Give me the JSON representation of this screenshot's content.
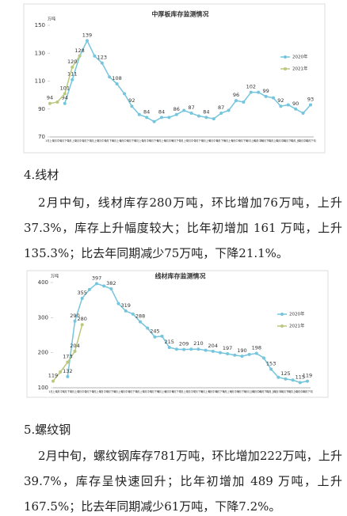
{
  "chart_data": [
    {
      "type": "line",
      "title": "中厚板库存监测情况",
      "y_unit": "万吨",
      "categories": [
        "1月上旬",
        "1月中旬",
        "1月下旬",
        "2月上旬",
        "2月中旬",
        "2月下旬",
        "3月上旬",
        "3月中旬",
        "3月下旬",
        "4月上旬",
        "4月中旬",
        "4月下旬",
        "5月上旬",
        "5月中旬",
        "5月下旬",
        "6月上旬",
        "6月中旬",
        "6月下旬",
        "7月上旬",
        "7月中旬",
        "7月下旬",
        "8月上旬",
        "8月中旬",
        "8月下旬",
        "9月上旬",
        "9月中旬",
        "9月下旬",
        "10月上旬",
        "10月中旬",
        "10月下旬",
        "11月上旬",
        "11月中旬",
        "11月下旬",
        "12月上旬",
        "12月中旬",
        "12月下旬"
      ],
      "ylim": [
        70,
        150
      ],
      "yticks": [
        70,
        90,
        110,
        130,
        150
      ],
      "grid": false,
      "legend": "right",
      "series": [
        {
          "name": "2020年",
          "color": "#74c5dd",
          "values": [
            null,
            null,
            94,
            111,
            128,
            139,
            128,
            123,
            113,
            108,
            101,
            92,
            86,
            84,
            81,
            84,
            84,
            86,
            89,
            87,
            85,
            84,
            83,
            87,
            89,
            96,
            95,
            102,
            102,
            99,
            98,
            92,
            93,
            90,
            87,
            93
          ],
          "value_labels": [
            null,
            null,
            "94",
            "111",
            null,
            "139",
            null,
            "123",
            null,
            "108",
            null,
            "92",
            null,
            "84",
            null,
            "84",
            null,
            "86",
            null,
            "87",
            null,
            "84",
            null,
            "87",
            null,
            "96",
            null,
            "102",
            null,
            "99",
            null,
            "92",
            null,
            "90",
            null,
            "93"
          ]
        },
        {
          "name": "2021年",
          "color": "#b9c97c",
          "values": [
            94,
            95,
            101,
            120,
            128,
            null,
            null,
            null,
            null,
            null,
            null,
            null,
            null,
            null,
            null,
            null,
            null,
            null,
            null,
            null,
            null,
            null,
            null,
            null,
            null,
            null,
            null,
            null,
            null,
            null,
            null,
            null,
            null,
            null,
            null,
            null
          ],
          "value_labels": [
            "94",
            null,
            "101",
            "120",
            "128",
            null,
            null,
            null,
            null,
            null,
            null,
            null,
            null,
            null,
            null,
            null,
            null,
            null,
            null,
            null,
            null,
            null,
            null,
            null,
            null,
            null,
            null,
            null,
            null,
            null,
            null,
            null,
            null,
            null,
            null,
            null
          ]
        }
      ]
    },
    {
      "type": "line",
      "title": "线材库存监测情况",
      "y_unit": "万吨",
      "categories": [
        "1月上旬",
        "1月中旬",
        "1月下旬",
        "2月上旬",
        "2月中旬",
        "2月下旬",
        "3月上旬",
        "3月中旬",
        "3月下旬",
        "4月上旬",
        "4月中旬",
        "4月下旬",
        "5月上旬",
        "5月中旬",
        "5月下旬",
        "6月上旬",
        "6月中旬",
        "6月下旬",
        "7月上旬",
        "7月中旬",
        "7月下旬",
        "8月上旬",
        "8月中旬",
        "8月下旬",
        "9月上旬",
        "9月中旬",
        "9月下旬",
        "10月上旬",
        "10月中旬",
        "10月下旬",
        "11月上旬",
        "11月中旬",
        "11月下旬",
        "12月上旬",
        "12月中旬",
        "12月下旬"
      ],
      "ylim": [
        100,
        400
      ],
      "yticks": [
        100,
        200,
        300,
        400
      ],
      "grid": false,
      "legend": "right",
      "series": [
        {
          "name": "2020年",
          "color": "#74c5dd",
          "values": [
            null,
            null,
            132,
            290,
            355,
            380,
            397,
            390,
            382,
            340,
            319,
            310,
            288,
            270,
            245,
            247,
            215,
            210,
            209,
            210,
            210,
            207,
            204,
            200,
            197,
            193,
            190,
            195,
            198,
            185,
            153,
            130,
            125,
            122,
            115,
            119
          ],
          "value_labels": [
            null,
            null,
            "132",
            "290",
            "355",
            null,
            "397",
            null,
            "382",
            null,
            "319",
            null,
            "288",
            null,
            "245",
            null,
            "215",
            null,
            "209",
            null,
            "210",
            null,
            "204",
            null,
            "197",
            null,
            "190",
            null,
            "198",
            null,
            "153",
            null,
            "125",
            null,
            "115",
            "119"
          ]
        },
        {
          "name": "2021年",
          "color": "#b9c97c",
          "values": [
            119,
            145,
            173,
            204,
            280,
            null,
            null,
            null,
            null,
            null,
            null,
            null,
            null,
            null,
            null,
            null,
            null,
            null,
            null,
            null,
            null,
            null,
            null,
            null,
            null,
            null,
            null,
            null,
            null,
            null,
            null,
            null,
            null,
            null,
            null,
            null
          ],
          "value_labels": [
            "119",
            null,
            "173",
            "204",
            "280",
            null,
            null,
            null,
            null,
            null,
            null,
            null,
            null,
            null,
            null,
            null,
            null,
            null,
            null,
            null,
            null,
            null,
            null,
            null,
            null,
            null,
            null,
            null,
            null,
            null,
            null,
            null,
            null,
            null,
            null,
            null
          ]
        }
      ]
    }
  ],
  "sections": [
    {
      "heading": "4.线材",
      "paragraph": "2月中旬，线材库存280万吨，环比增加76万吨，上升37.3%，库存上升幅度较大；比年初增加 161 万吨，上升135.3%；比去年同期减少75万吨，下降21.1%。"
    },
    {
      "heading": "5.螺纹钢",
      "paragraph": "2月中旬，螺纹钢库存781万吨，环比增加222万吨，上升 39.7%，库存呈快速回升；比年初增加 489 万吨，上升167.5%；比去年同期减少61万吨，下降7.2%。"
    }
  ]
}
